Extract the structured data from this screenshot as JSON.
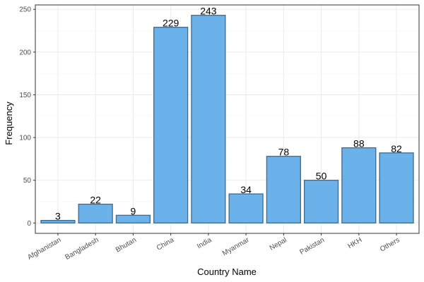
{
  "chart_data": {
    "type": "bar",
    "title": "",
    "xlabel": "Country Name",
    "ylabel": "Frequency",
    "categories": [
      "Afghanistan",
      "Bangladesh",
      "Bhutan",
      "China",
      "India",
      "Myanmar",
      "Nepal",
      "Pakistan",
      "HKH",
      "Others"
    ],
    "values": [
      3,
      22,
      9,
      229,
      243,
      34,
      78,
      50,
      88,
      82
    ],
    "ylim": [
      -12.15,
      255.15
    ],
    "yticks": [
      0,
      50,
      100,
      150,
      200,
      250
    ],
    "grid": true,
    "legend": "none",
    "colors": {
      "bar_fill": "#6cb2ea",
      "bar_stroke": "#3e6a8c",
      "grid_major": "#ebebeb",
      "grid_minor": "#f5f5f5",
      "panel_border": "#333333"
    }
  }
}
